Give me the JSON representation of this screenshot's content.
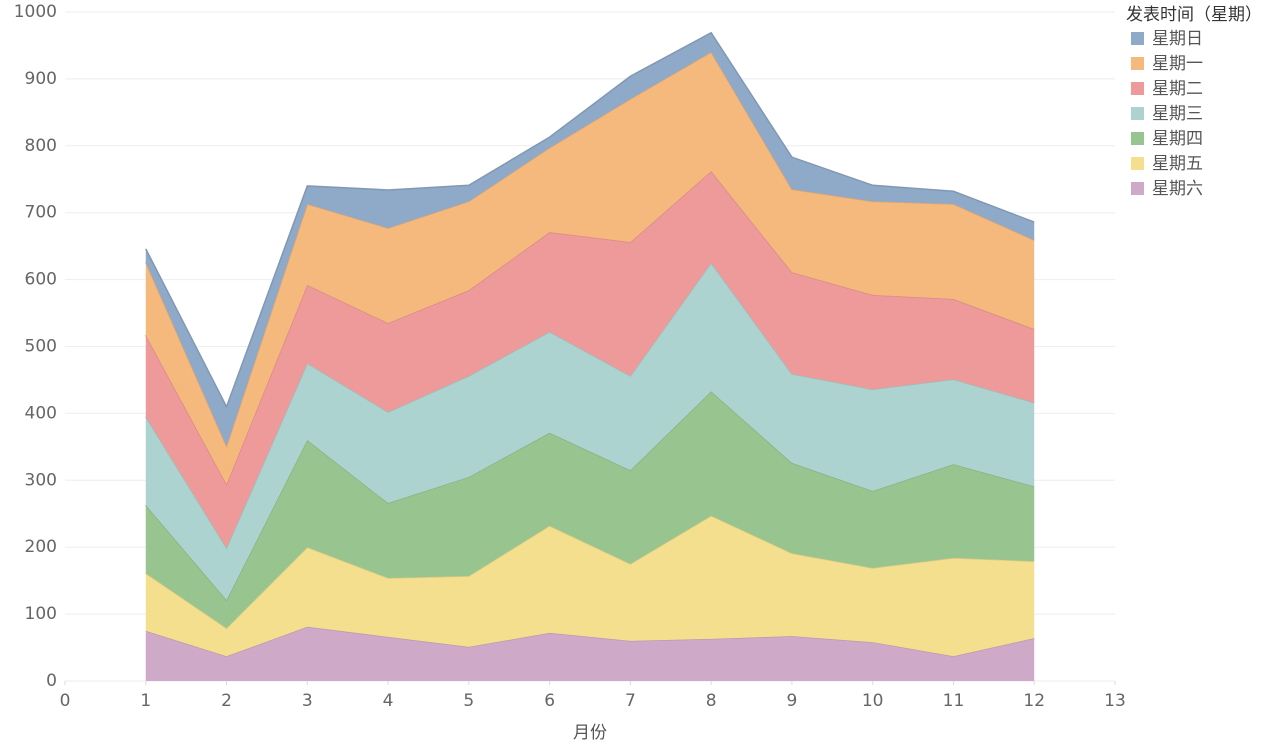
{
  "chart_data": {
    "type": "stacked_area",
    "x_label": "月份",
    "legend_title": "发表时间（星期）",
    "legend": "right",
    "grid": true,
    "x": [
      1,
      2,
      3,
      4,
      5,
      6,
      7,
      8,
      9,
      10,
      11,
      12
    ],
    "xlim": [
      0,
      13
    ],
    "xticks": [
      0,
      1,
      2,
      3,
      4,
      5,
      6,
      7,
      8,
      9,
      10,
      11,
      12,
      13
    ],
    "ylim": [
      0,
      1000
    ],
    "yticks": [
      0,
      100,
      200,
      300,
      400,
      500,
      600,
      700,
      800,
      900,
      1000
    ],
    "series": [
      {
        "name": "星期日",
        "color": "#8fa9c8",
        "values": [
          20,
          59,
          27,
          57,
          24,
          16,
          34,
          29,
          48,
          24,
          19,
          27
        ]
      },
      {
        "name": "星期一",
        "color": "#f5b87d",
        "values": [
          109,
          57,
          121,
          142,
          133,
          126,
          214,
          178,
          124,
          140,
          142,
          133
        ]
      },
      {
        "name": "星期二",
        "color": "#ee9a9a",
        "values": [
          122,
          95,
          117,
          133,
          128,
          149,
          200,
          137,
          152,
          141,
          120,
          110
        ]
      },
      {
        "name": "星期三",
        "color": "#acd3cf",
        "values": [
          132,
          78,
          115,
          136,
          151,
          151,
          141,
          192,
          133,
          152,
          127,
          125
        ]
      },
      {
        "name": "星期四",
        "color": "#98c58f",
        "values": [
          102,
          42,
          160,
          112,
          148,
          139,
          140,
          186,
          135,
          115,
          140,
          112
        ]
      },
      {
        "name": "星期五",
        "color": "#f3df8d",
        "values": [
          86,
          42,
          119,
          88,
          106,
          160,
          115,
          184,
          124,
          111,
          147,
          115
        ]
      },
      {
        "name": "星期六",
        "color": "#cfaac8",
        "values": [
          75,
          37,
          81,
          66,
          51,
          72,
          60,
          63,
          67,
          58,
          37,
          64
        ]
      }
    ]
  }
}
